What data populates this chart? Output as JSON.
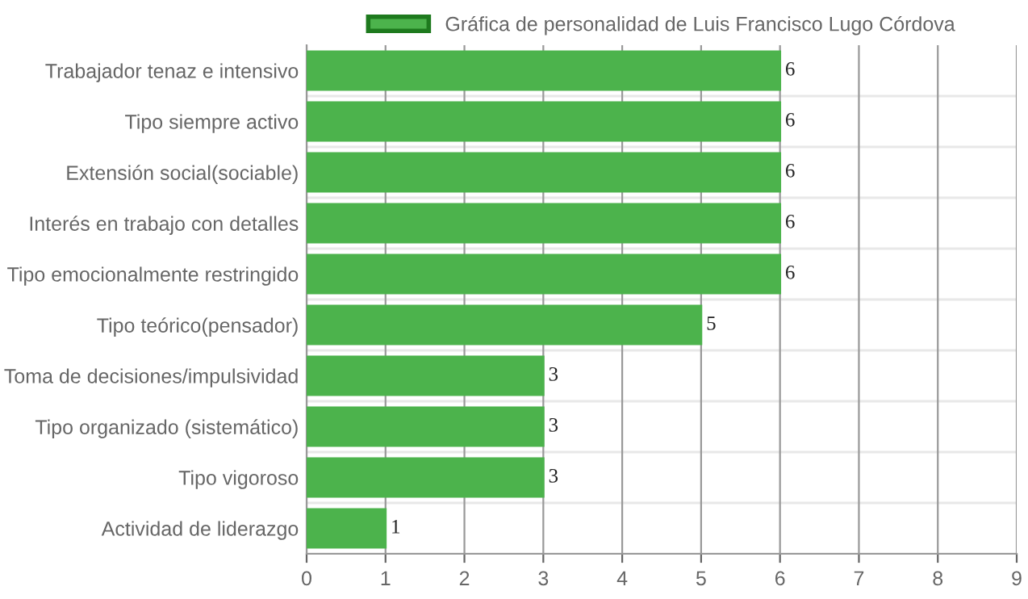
{
  "chart_data": {
    "type": "bar",
    "orientation": "horizontal",
    "categories": [
      "Trabajador tenaz e intensivo",
      "Tipo siempre activo",
      "Extensión social(sociable)",
      "Interés en trabajo con detalles",
      "Tipo emocionalmente restringido",
      "Tipo teórico(pensador)",
      "Toma de decisiones/impulsividad",
      "Tipo organizado (sistemático)",
      "Tipo vigoroso",
      "Actividad de liderazgo"
    ],
    "series": [
      {
        "name": "Gráfica de personalidad de Luis Francisco Lugo Córdova",
        "color": "#4cb34c",
        "values": [
          6,
          6,
          6,
          6,
          6,
          5,
          3,
          3,
          3,
          1
        ]
      }
    ],
    "xlim": [
      0,
      9
    ],
    "xticks": [
      0,
      1,
      2,
      3,
      4,
      5,
      6,
      7,
      8,
      9
    ],
    "grid": true,
    "legend": "top",
    "data_labels": true
  }
}
